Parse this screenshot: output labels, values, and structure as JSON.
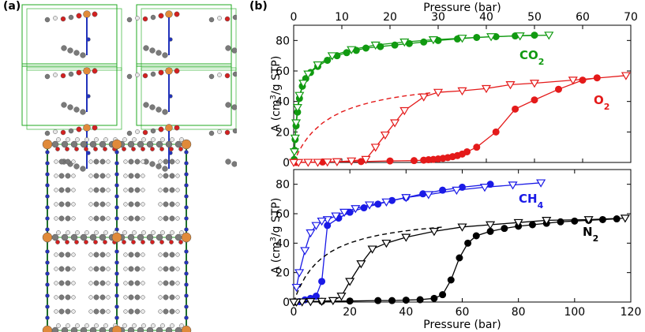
{
  "panels": {
    "a": "(a)",
    "b": "(b)"
  },
  "colors": {
    "co2": "#119a11",
    "o2": "#e41a1a",
    "ch4": "#1a1ae6",
    "n2": "#000000",
    "cell": "#22aa22",
    "carbon": "#7a7a7a",
    "oxygen": "#d42020",
    "nitrogen": "#2233bb",
    "metal": "#e08a3a",
    "hydrogen": "#e8e8e8"
  },
  "chart_data": [
    {
      "type": "line",
      "panel": "top",
      "xlabel": "Pressure (bar)",
      "xaxis_position": "top",
      "xlim": [
        0,
        70
      ],
      "xticks": [
        0,
        10,
        20,
        30,
        40,
        50,
        60,
        70
      ],
      "ylim": [
        0,
        90
      ],
      "yticks": [
        0,
        20,
        40,
        60,
        80
      ],
      "ylabel_parts": [
        "A (cm",
        "3",
        "/g STP)"
      ],
      "series": [
        {
          "name": "CO₂",
          "label_parts": [
            "CO",
            "2"
          ],
          "color": "#119a11",
          "adsorption": {
            "x": [
              0.1,
              0.2,
              0.3,
              0.5,
              0.8,
              1.2,
              1.8,
              2.5,
              3.5,
              5,
              7,
              9,
              11,
              13,
              15,
              18,
              21,
              24,
              27,
              30,
              34,
              38,
              42,
              46,
              50
            ],
            "y": [
              2,
              8,
              15,
              24,
              33,
              42,
              50,
              55,
              59,
              63,
              67,
              70,
              72,
              73.5,
              75,
              76,
              77,
              78,
              79,
              80,
              81,
              82,
              82.5,
              83,
              83.5
            ]
          },
          "desorption": {
            "x": [
              53,
              47,
              41,
              35,
              29,
              23,
              17,
              12,
              8,
              5,
              3,
              2,
              1.2,
              0.8,
              0.5,
              0.3,
              0.15
            ],
            "y": [
              83.5,
              83,
              82.5,
              81.5,
              80.5,
              79,
              77,
              74,
              70,
              64,
              58,
              52,
              44,
              36,
              26,
              16,
              7
            ]
          }
        },
        {
          "name": "O₂",
          "label_parts": [
            "O",
            "2"
          ],
          "color": "#e41a1a",
          "adsorption": {
            "x": [
              0.5,
              6,
              14,
              20,
              25,
              27,
              28,
              29,
              30,
              31,
              32,
              33,
              34,
              35,
              36,
              38,
              42,
              46,
              50,
              55,
              60,
              63
            ],
            "y": [
              0,
              0.3,
              0.6,
              1,
              1.2,
              1.5,
              1.8,
              2,
              2.3,
              2.7,
              3.2,
              3.8,
              4.5,
              5.5,
              7,
              10,
              20,
              35,
              41,
              48,
              54,
              55.5
            ]
          },
          "desorption": {
            "x": [
              69,
              58,
              50,
              45,
              40,
              35,
              30,
              27,
              23,
              21,
              19,
              17,
              15,
              12,
              9,
              7,
              5,
              3,
              1,
              0
            ],
            "y": [
              57,
              54,
              52,
              51,
              48.5,
              47,
              46,
              43,
              34,
              26,
              18,
              10,
              2,
              1,
              0.5,
              0.3,
              0.1,
              0.1,
              0,
              0
            ]
          },
          "fit": {
            "x": [
              0,
              1,
              2,
              3,
              4,
              6,
              8,
              10,
              12,
              14,
              16,
              18,
              20,
              23,
              26,
              29
            ],
            "y": [
              0,
              6.9,
              12.3,
              16.7,
              20.3,
              25.9,
              30.0,
              33.2,
              35.7,
              37.7,
              39.4,
              40.8,
              42.1,
              43.6,
              44.8,
              45.8
            ]
          }
        }
      ]
    },
    {
      "type": "line",
      "panel": "bottom",
      "xlabel": "Pressure (bar)",
      "xaxis_position": "bottom",
      "xlim": [
        0,
        120
      ],
      "xticks": [
        0,
        20,
        40,
        60,
        80,
        100,
        120
      ],
      "ylim": [
        0,
        90
      ],
      "yticks": [
        0,
        20,
        40,
        60,
        80
      ],
      "ylabel_parts": [
        "A (cm",
        "3",
        "/g STP)"
      ],
      "series": [
        {
          "name": "CH₄",
          "label_parts": [
            "CH",
            "4"
          ],
          "color": "#1a1ae6",
          "adsorption": {
            "x": [
              0.5,
              2,
              4,
              6,
              8,
              10,
              12,
              16,
              20,
              25,
              30,
              35,
              40,
              46,
              53,
              60,
              70
            ],
            "y": [
              0,
              0.3,
              1.5,
              2.5,
              4,
              14,
              52,
              57,
              61,
              64,
              66.5,
              69,
              71,
              73.5,
              76,
              78,
              80
            ]
          },
          "desorption": {
            "x": [
              88,
              78,
              68,
              58,
              48,
              40,
              33,
              27,
              22,
              18,
              15,
              12,
              10,
              8,
              6,
              4,
              2,
              1
            ],
            "y": [
              81,
              79.5,
              78,
              76,
              73,
              71,
              68,
              66,
              63.5,
              61,
              58.5,
              56,
              55,
              52,
              47,
              35,
              20,
              10
            ]
          }
        },
        {
          "name": "N₂",
          "label_parts": [
            "N",
            "2"
          ],
          "color": "#000000",
          "adsorption": {
            "x": [
              0.5,
              10,
              20,
              30,
              35,
              40,
              45,
              50,
              53,
              56,
              59,
              62,
              65,
              70,
              75,
              80,
              85,
              90,
              95,
              100,
              105,
              110,
              115
            ],
            "y": [
              0,
              0.5,
              0.7,
              1,
              1,
              1.3,
              1.6,
              2.5,
              5,
              15,
              30,
              40,
              45,
              48,
              50,
              51.5,
              52.5,
              53.5,
              54.5,
              55,
              55.5,
              56,
              56.5
            ]
          },
          "desorption": {
            "x": [
              118,
              105,
              90,
              80,
              70,
              60,
              50,
              40,
              33,
              28,
              24,
              20,
              17,
              14,
              10,
              6,
              3,
              1,
              0
            ],
            "y": [
              57,
              56,
              55.5,
              54,
              52.5,
              51,
              48,
              44,
              40,
              36,
              26,
              14,
              4,
              1,
              0.5,
              0.3,
              0.1,
              0,
              0
            ]
          },
          "fit": {
            "x": [
              0,
              1,
              2,
              4,
              6,
              8,
              10,
              13,
              16,
              20,
              25,
              30,
              35,
              40,
              45,
              50,
              53
            ],
            "y": [
              0,
              5.1,
              9.5,
              16.7,
              22.1,
              26.4,
              29.8,
              33.9,
              37.0,
              40.2,
              43.1,
              45.3,
              47.0,
              48.4,
              49.5,
              50.4,
              50.9
            ]
          }
        }
      ]
    }
  ]
}
